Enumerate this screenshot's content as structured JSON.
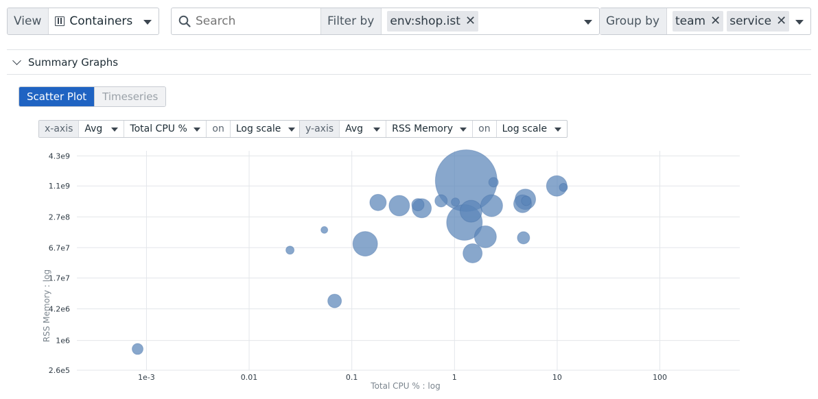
{
  "toolbar": {
    "view_label": "View",
    "view_value": "Containers",
    "search_placeholder": "Search",
    "filter_label": "Filter by",
    "filter_tags": [
      "env:shop.ist"
    ],
    "group_label": "Group by",
    "group_tags": [
      "team",
      "service"
    ]
  },
  "summary": {
    "title": "Summary Graphs"
  },
  "tabs": {
    "scatter": "Scatter Plot",
    "timeseries": "Timeseries",
    "active": "scatter"
  },
  "x_axis_controls": {
    "label": "x-axis",
    "agg": "Avg",
    "metric": "Total CPU %",
    "on": "on",
    "scale": "Log scale"
  },
  "y_axis_controls": {
    "label": "y-axis",
    "agg": "Avg",
    "metric": "RSS Memory",
    "on": "on",
    "scale": "Log scale"
  },
  "colors": {
    "accent": "#1f63c2",
    "point": "#5a85b8",
    "point_dark": "#3e6aa3"
  },
  "chart_data": {
    "type": "scatter",
    "xlabel": "Total CPU % : log",
    "ylabel": "RSS Memory : log",
    "x_scale": "log",
    "y_scale": "log",
    "xlim": [
      0.00021,
      600
    ],
    "ylim": [
      260000,
      5400000000
    ],
    "x_ticks": [
      {
        "value": 0.001,
        "label": "1e-3"
      },
      {
        "value": 0.01,
        "label": "0.01"
      },
      {
        "value": 0.1,
        "label": "0.1"
      },
      {
        "value": 1,
        "label": "1"
      },
      {
        "value": 10,
        "label": "10"
      },
      {
        "value": 100,
        "label": "100"
      }
    ],
    "y_ticks": [
      {
        "value": 260000,
        "label": "2.6e5"
      },
      {
        "value": 1000000,
        "label": "1e6"
      },
      {
        "value": 4200000,
        "label": "4.2e6"
      },
      {
        "value": 17000000,
        "label": "1.7e7"
      },
      {
        "value": 67000000,
        "label": "6.7e7"
      },
      {
        "value": 270000000,
        "label": "2.7e8"
      },
      {
        "value": 1100000000,
        "label": "1.1e9"
      },
      {
        "value": 4300000000,
        "label": "4.3e9"
      }
    ],
    "grid": true,
    "points": [
      {
        "x": 0.00082,
        "y": 680000,
        "size": 8
      },
      {
        "x": 0.025,
        "y": 60000000,
        "size": 6
      },
      {
        "x": 0.054,
        "y": 150000000,
        "size": 5
      },
      {
        "x": 0.068,
        "y": 6000000,
        "size": 10
      },
      {
        "x": 0.135,
        "y": 80000000,
        "size": 18
      },
      {
        "x": 0.18,
        "y": 520000000,
        "size": 12
      },
      {
        "x": 0.29,
        "y": 450000000,
        "size": 15
      },
      {
        "x": 0.44,
        "y": 470000000,
        "size": 9
      },
      {
        "x": 0.48,
        "y": 400000000,
        "size": 14
      },
      {
        "x": 0.74,
        "y": 560000000,
        "size": 9
      },
      {
        "x": 1.02,
        "y": 530000000,
        "size": 6
      },
      {
        "x": 1.3,
        "y": 1400000000,
        "size": 45
      },
      {
        "x": 1.25,
        "y": 210000000,
        "size": 26
      },
      {
        "x": 1.45,
        "y": 350000000,
        "size": 16
      },
      {
        "x": 1.5,
        "y": 52000000,
        "size": 14
      },
      {
        "x": 2.0,
        "y": 110000000,
        "size": 16
      },
      {
        "x": 2.3,
        "y": 450000000,
        "size": 16
      },
      {
        "x": 2.4,
        "y": 1300000000,
        "size": 7
      },
      {
        "x": 4.6,
        "y": 490000000,
        "size": 13
      },
      {
        "x": 4.7,
        "y": 105000000,
        "size": 9
      },
      {
        "x": 4.9,
        "y": 600000000,
        "size": 15
      },
      {
        "x": 5.0,
        "y": 560000000,
        "size": 7
      },
      {
        "x": 9.9,
        "y": 1100000000,
        "size": 15
      },
      {
        "x": 11.5,
        "y": 1030000000,
        "size": 6
      }
    ]
  }
}
